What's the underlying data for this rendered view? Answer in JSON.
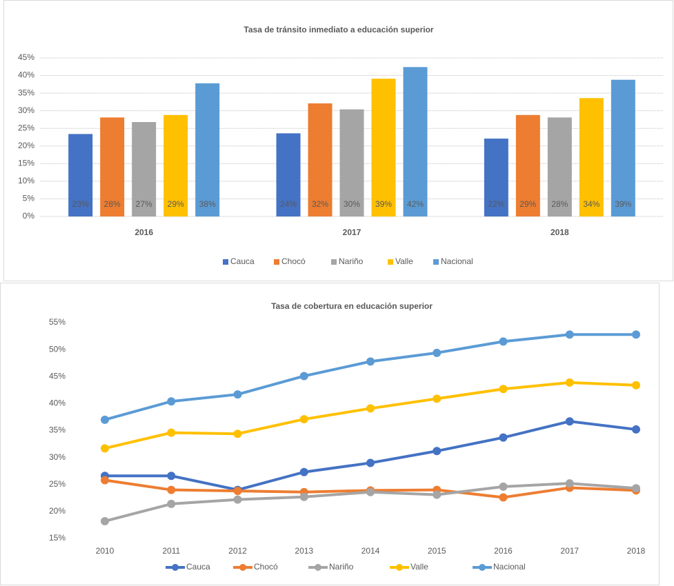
{
  "chart_data": [
    {
      "type": "bar",
      "title": "Tasa de tránsito inmediato a educación superior",
      "categories": [
        "2016",
        "2017",
        "2018"
      ],
      "series": [
        {
          "name": "Cauca",
          "color": "#4472c4",
          "values": [
            23.4,
            23.6,
            22.1
          ],
          "value_labels": [
            "23%",
            "24%",
            "22%"
          ]
        },
        {
          "name": "Chocó",
          "color": "#ed7d31",
          "values": [
            28.1,
            32.1,
            28.8
          ],
          "value_labels": [
            "28%",
            "32%",
            "29%"
          ]
        },
        {
          "name": "Nariño",
          "color": "#a5a5a5",
          "values": [
            26.8,
            30.4,
            28.1
          ],
          "value_labels": [
            "27%",
            "30%",
            "28%"
          ]
        },
        {
          "name": "Valle",
          "color": "#ffc000",
          "values": [
            28.8,
            39.1,
            33.6
          ],
          "value_labels": [
            "29%",
            "39%",
            "34%"
          ]
        },
        {
          "name": "Nacional",
          "color": "#5b9bd5",
          "values": [
            37.8,
            42.4,
            38.8
          ],
          "value_labels": [
            "38%",
            "42%",
            "39%"
          ]
        }
      ],
      "ylim": [
        0,
        45
      ],
      "yticks": [
        {
          "value": 0,
          "label": "0%"
        },
        {
          "value": 5,
          "label": "5%"
        },
        {
          "value": 10,
          "label": "10%"
        },
        {
          "value": 15,
          "label": "15%"
        },
        {
          "value": 20,
          "label": "20%"
        },
        {
          "value": 25,
          "label": "25%"
        },
        {
          "value": 30,
          "label": "30%"
        },
        {
          "value": 35,
          "label": "35%"
        },
        {
          "value": 40,
          "label": "40%"
        },
        {
          "value": 45,
          "label": "45%"
        }
      ],
      "grid": true,
      "legend": "bottom"
    },
    {
      "type": "line",
      "title": "Tasa de cobertura en educación superior",
      "categories": [
        "2010",
        "2011",
        "2012",
        "2013",
        "2014",
        "2015",
        "2016",
        "2017",
        "2018"
      ],
      "series": [
        {
          "name": "Cauca",
          "color": "#4472c4",
          "values": [
            26.6,
            26.6,
            24.0,
            27.3,
            29.0,
            31.2,
            33.7,
            36.7,
            35.2
          ]
        },
        {
          "name": "Chocó",
          "color": "#ed7d31",
          "values": [
            25.8,
            24.0,
            23.8,
            23.6,
            23.9,
            24.0,
            22.6,
            24.4,
            23.9
          ]
        },
        {
          "name": "Nariño",
          "color": "#a5a5a5",
          "values": [
            18.2,
            21.4,
            22.2,
            22.7,
            23.6,
            23.1,
            24.6,
            25.2,
            24.3
          ]
        },
        {
          "name": "Valle",
          "color": "#ffc000",
          "values": [
            31.7,
            34.6,
            34.4,
            37.1,
            39.1,
            40.9,
            42.7,
            43.9,
            43.4
          ]
        },
        {
          "name": "Nacional",
          "color": "#5b9bd5",
          "values": [
            37.0,
            40.4,
            41.7,
            45.1,
            47.8,
            49.4,
            51.5,
            52.8,
            52.8
          ]
        }
      ],
      "ylim": [
        15,
        55
      ],
      "yticks": [
        {
          "value": 15,
          "label": "15%"
        },
        {
          "value": 20,
          "label": "20%"
        },
        {
          "value": 25,
          "label": "25%"
        },
        {
          "value": 30,
          "label": "30%"
        },
        {
          "value": 35,
          "label": "35%"
        },
        {
          "value": 40,
          "label": "40%"
        },
        {
          "value": 45,
          "label": "45%"
        },
        {
          "value": 50,
          "label": "50%"
        },
        {
          "value": 55,
          "label": "55%"
        }
      ],
      "grid": false,
      "legend": "bottom"
    }
  ]
}
